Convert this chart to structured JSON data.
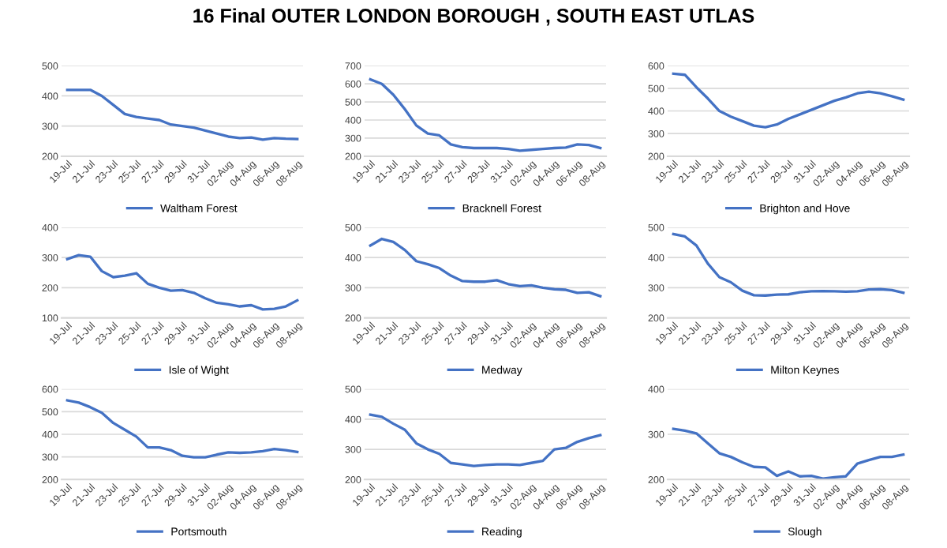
{
  "chart_data": [
    {
      "type": "line",
      "title": "16 Final OUTER LONDON BOROUGH , SOUTH EAST UTLAS",
      "categories": [
        "19-Jul",
        null,
        "21-Jul",
        null,
        "23-Jul",
        null,
        "25-Jul",
        null,
        "27-Jul",
        null,
        "29-Jul",
        null,
        "31-Jul",
        null,
        "02-Aug",
        null,
        "04-Aug",
        null,
        "06-Aug",
        null,
        "08-Aug"
      ],
      "series": [
        {
          "name": "Waltham Forest",
          "color": "#4472c4",
          "values": [
            420,
            420,
            420,
            400,
            370,
            340,
            330,
            325,
            320,
            305,
            300,
            295,
            285,
            275,
            265,
            260,
            262,
            255,
            260,
            258,
            257
          ]
        }
      ],
      "ylim": [
        200,
        500
      ],
      "yticks": [
        200,
        300,
        400,
        500
      ],
      "grid": "y",
      "legend": "bottom"
    },
    {
      "type": "line",
      "categories": [
        "19-Jul",
        null,
        "21-Jul",
        null,
        "23-Jul",
        null,
        "25-Jul",
        null,
        "27-Jul",
        null,
        "29-Jul",
        null,
        "31-Jul",
        null,
        "02-Aug",
        null,
        "04-Aug",
        null,
        "06-Aug",
        null,
        "08-Aug"
      ],
      "series": [
        {
          "name": "Bracknell Forest",
          "color": "#4472c4",
          "values": [
            625,
            600,
            540,
            460,
            370,
            325,
            315,
            265,
            250,
            245,
            245,
            245,
            240,
            230,
            235,
            240,
            245,
            248,
            265,
            262,
            245
          ]
        }
      ],
      "ylim": [
        200,
        700
      ],
      "yticks": [
        200,
        300,
        400,
        500,
        600,
        700
      ],
      "grid": "y",
      "legend": "bottom"
    },
    {
      "type": "line",
      "categories": [
        "19-Jul",
        null,
        "21-Jul",
        null,
        "23-Jul",
        null,
        "25-Jul",
        null,
        "27-Jul",
        null,
        "29-Jul",
        null,
        "31-Jul",
        null,
        "02-Aug",
        null,
        "04-Aug",
        null,
        "06-Aug",
        null,
        "08-Aug"
      ],
      "series": [
        {
          "name": "Brighton and Hove",
          "color": "#4472c4",
          "values": [
            565,
            560,
            505,
            455,
            400,
            375,
            355,
            335,
            328,
            340,
            365,
            385,
            405,
            425,
            445,
            460,
            478,
            485,
            478,
            465,
            450
          ]
        }
      ],
      "ylim": [
        200,
        600
      ],
      "yticks": [
        200,
        300,
        400,
        500,
        600
      ],
      "grid": "y",
      "legend": "bottom"
    },
    {
      "type": "line",
      "categories": [
        "19-Jul",
        null,
        "21-Jul",
        null,
        "23-Jul",
        null,
        "25-Jul",
        null,
        "27-Jul",
        null,
        "29-Jul",
        null,
        "31-Jul",
        null,
        "02-Aug",
        null,
        "04-Aug",
        null,
        "06-Aug",
        null,
        "08-Aug"
      ],
      "series": [
        {
          "name": "Isle of Wight",
          "color": "#4472c4",
          "values": [
            295,
            308,
            303,
            255,
            235,
            240,
            248,
            213,
            200,
            190,
            192,
            183,
            165,
            150,
            145,
            138,
            142,
            128,
            130,
            138,
            158
          ]
        }
      ],
      "ylim": [
        100,
        400
      ],
      "yticks": [
        100,
        200,
        300,
        400
      ],
      "grid": "y",
      "legend": "bottom"
    },
    {
      "type": "line",
      "categories": [
        "19-Jul",
        null,
        "21-Jul",
        null,
        "23-Jul",
        null,
        "25-Jul",
        null,
        "27-Jul",
        null,
        "29-Jul",
        null,
        "31-Jul",
        null,
        "02-Aug",
        null,
        "04-Aug",
        null,
        "06-Aug",
        null,
        "08-Aug"
      ],
      "series": [
        {
          "name": "Medway",
          "color": "#4472c4",
          "values": [
            440,
            462,
            452,
            425,
            388,
            378,
            365,
            340,
            322,
            320,
            320,
            325,
            312,
            305,
            308,
            300,
            295,
            293,
            283,
            285,
            272
          ]
        }
      ],
      "ylim": [
        200,
        500
      ],
      "yticks": [
        200,
        300,
        400,
        500
      ],
      "grid": "y",
      "legend": "bottom"
    },
    {
      "type": "line",
      "categories": [
        "19-Jul",
        null,
        "21-Jul",
        null,
        "23-Jul",
        null,
        "25-Jul",
        null,
        "27-Jul",
        null,
        "29-Jul",
        null,
        "31-Jul",
        null,
        "02-Aug",
        null,
        "04-Aug",
        null,
        "06-Aug",
        null,
        "08-Aug"
      ],
      "series": [
        {
          "name": "Milton Keynes",
          "color": "#4472c4",
          "values": [
            478,
            470,
            440,
            380,
            335,
            318,
            290,
            275,
            274,
            277,
            278,
            285,
            288,
            289,
            288,
            287,
            288,
            294,
            295,
            292,
            283
          ]
        }
      ],
      "ylim": [
        200,
        500
      ],
      "yticks": [
        200,
        300,
        400,
        500
      ],
      "grid": "y",
      "legend": "bottom"
    },
    {
      "type": "line",
      "categories": [
        "19-Jul",
        null,
        "21-Jul",
        null,
        "23-Jul",
        null,
        "25-Jul",
        null,
        "27-Jul",
        null,
        "29-Jul",
        null,
        "31-Jul",
        null,
        "02-Aug",
        null,
        "04-Aug",
        null,
        "06-Aug",
        null,
        "08-Aug"
      ],
      "series": [
        {
          "name": "Portsmouth",
          "color": "#4472c4",
          "values": [
            550,
            540,
            520,
            495,
            450,
            420,
            390,
            342,
            342,
            330,
            305,
            298,
            298,
            310,
            320,
            318,
            320,
            325,
            335,
            330,
            322
          ]
        }
      ],
      "ylim": [
        200,
        600
      ],
      "yticks": [
        200,
        300,
        400,
        500,
        600
      ],
      "grid": "y",
      "legend": "bottom"
    },
    {
      "type": "line",
      "categories": [
        "19-Jul",
        null,
        "21-Jul",
        null,
        "23-Jul",
        null,
        "25-Jul",
        null,
        "27-Jul",
        null,
        "29-Jul",
        null,
        "31-Jul",
        null,
        "02-Aug",
        null,
        "04-Aug",
        null,
        "06-Aug",
        null,
        "08-Aug"
      ],
      "series": [
        {
          "name": "Reading",
          "color": "#4472c4",
          "values": [
            415,
            408,
            385,
            365,
            320,
            300,
            285,
            255,
            250,
            245,
            248,
            250,
            250,
            248,
            255,
            262,
            300,
            305,
            325,
            337,
            347
          ]
        }
      ],
      "ylim": [
        200,
        500
      ],
      "yticks": [
        200,
        300,
        400,
        500
      ],
      "grid": "y",
      "legend": "bottom"
    },
    {
      "type": "line",
      "categories": [
        "19-Jul",
        null,
        "21-Jul",
        null,
        "23-Jul",
        null,
        "25-Jul",
        null,
        "27-Jul",
        null,
        "29-Jul",
        null,
        "31-Jul",
        null,
        "02-Aug",
        null,
        "04-Aug",
        null,
        "06-Aug",
        null,
        "08-Aug"
      ],
      "series": [
        {
          "name": "Slough",
          "color": "#4472c4",
          "values": [
            312,
            308,
            302,
            280,
            258,
            250,
            238,
            228,
            227,
            208,
            218,
            207,
            208,
            202,
            205,
            207,
            235,
            243,
            250,
            250,
            255
          ]
        }
      ],
      "ylim": [
        200,
        400
      ],
      "yticks": [
        200,
        300,
        400
      ],
      "grid": "y",
      "legend": "bottom"
    }
  ]
}
